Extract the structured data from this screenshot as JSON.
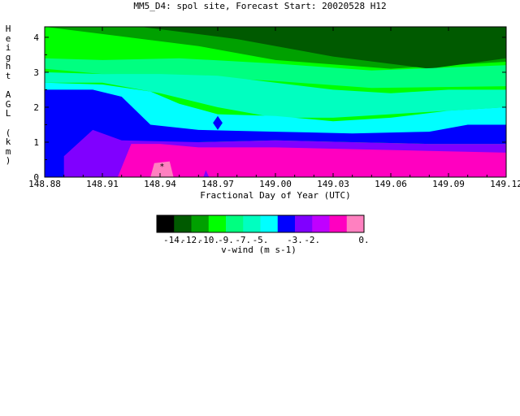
{
  "chart_data": {
    "type": "heatmap",
    "title": "MM5_D4: spol site,  Forecast Start: 20020528 H12",
    "xlabel": "Fractional Day of Year (UTC)",
    "ylabel": "Height AGL (km)",
    "xlim": [
      148.88,
      149.12
    ],
    "ylim": [
      0,
      4.3
    ],
    "x_ticks": [
      "148.88",
      "148.91",
      "148.94",
      "148.97",
      "149.00",
      "149.03",
      "149.06",
      "149.09",
      "149.12"
    ],
    "y_ticks": [
      "0",
      "1",
      "2",
      "3",
      "4"
    ],
    "colorbar": {
      "label": "v-wind (m s-1)",
      "tick_labels": [
        "-14.",
        "-12.",
        "-10.",
        "-9.",
        "-7.",
        "-5.",
        "-3.",
        "-2.",
        "0."
      ],
      "colors": [
        "#000000",
        "#005a00",
        "#00a000",
        "#00ff00",
        "#00ff80",
        "#00ffc0",
        "#00ffff",
        "#0000ff",
        "#8000ff",
        "#c000ff",
        "#ff00c0",
        "#ff80c0"
      ]
    },
    "layers": [
      {
        "color": "#00ff00",
        "x": [
          148.88,
          149.12
        ],
        "y": [
          0,
          4.3
        ]
      },
      {
        "color": "#00a000",
        "x": [
          148.88,
          148.96,
          149.0,
          149.06,
          149.12
        ],
        "top": [
          4.3,
          4.3,
          4.3,
          4.3,
          4.3
        ],
        "bottom": [
          4.3,
          3.75,
          3.35,
          3.1,
          3.3
        ]
      },
      {
        "color": "#005a00",
        "x": [
          148.88,
          148.93,
          148.98,
          149.03,
          149.08,
          149.12
        ],
        "top": [
          4.3,
          4.3,
          4.3,
          4.3,
          4.3,
          4.3
        ],
        "bottom": [
          4.3,
          4.3,
          3.95,
          3.45,
          3.1,
          3.4
        ]
      },
      {
        "color": "#000000",
        "x": [
          148.9,
          148.91,
          148.92
        ],
        "top": [
          4.3,
          4.3,
          4.3
        ],
        "bottom": [
          4.3,
          4.3,
          4.3
        ]
      },
      {
        "color": "#00ff80",
        "x": [
          148.88,
          148.91,
          148.95,
          149.0,
          149.05,
          149.12
        ],
        "top": [
          3.4,
          3.35,
          3.4,
          3.25,
          3.05,
          3.2
        ],
        "bottom": [
          3.1,
          2.95,
          2.9,
          2.75,
          2.55,
          2.6
        ]
      },
      {
        "color": "#00ffc0",
        "x": [
          148.88,
          148.91,
          148.94,
          148.97,
          149.0,
          149.03,
          149.06,
          149.09,
          149.12
        ],
        "top": [
          3.0,
          2.95,
          2.95,
          2.9,
          2.7,
          2.5,
          2.4,
          2.5,
          2.5
        ],
        "bottom": [
          2.7,
          2.7,
          2.4,
          2.0,
          1.7,
          1.7,
          1.8,
          1.9,
          2.0
        ]
      },
      {
        "color": "#00ffff",
        "x": [
          148.88,
          148.91,
          148.935,
          148.95,
          148.97,
          149.0,
          149.03,
          149.06,
          149.09,
          149.12
        ],
        "top": [
          2.7,
          2.65,
          2.45,
          2.1,
          1.8,
          1.75,
          1.6,
          1.7,
          1.9,
          2.0
        ],
        "bottom": [
          2.4,
          2.3,
          1.5,
          1.3,
          1.3,
          1.25,
          1.05,
          1.05,
          1.15,
          1.3
        ]
      },
      {
        "color": "#0000ff",
        "x": [
          148.88,
          148.905,
          148.92,
          148.935,
          148.96,
          149.0,
          149.04,
          149.08,
          149.1,
          149.12
        ],
        "top": [
          2.5,
          2.5,
          2.3,
          1.5,
          1.35,
          1.3,
          1.25,
          1.3,
          1.5,
          1.5
        ],
        "bottom": [
          0.0,
          0.0,
          0.9,
          0.95,
          1.0,
          1.05,
          1.0,
          0.95,
          0.95,
          0.95
        ]
      },
      {
        "color": "#8000ff",
        "x": [
          148.89,
          148.905,
          148.92,
          148.96,
          149.0,
          149.04,
          149.08,
          149.12
        ],
        "top": [
          0.6,
          1.35,
          1.05,
          1.0,
          1.05,
          1.0,
          0.95,
          0.95
        ],
        "bottom": [
          0.0,
          0.0,
          0.0,
          0.0,
          0.0,
          0.0,
          0.0,
          0.0
        ]
      },
      {
        "color": "#ff00c0",
        "x": [
          148.918,
          148.925,
          148.94,
          148.96,
          149.0,
          149.04,
          149.08,
          149.12
        ],
        "top": [
          0.0,
          0.95,
          0.95,
          0.85,
          0.85,
          0.8,
          0.75,
          0.7
        ],
        "bottom": [
          0.0,
          0.0,
          0.0,
          0.0,
          0.0,
          0.0,
          0.0,
          0.0
        ]
      }
    ],
    "patches": [
      {
        "color": "#0000ff",
        "points": [
          [
            148.9675,
            1.55
          ],
          [
            148.97,
            1.75
          ],
          [
            148.9725,
            1.55
          ],
          [
            148.97,
            1.35
          ]
        ]
      },
      {
        "color": "#8000ff",
        "points": [
          [
            148.9625,
            0.0
          ],
          [
            148.9638,
            0.2
          ],
          [
            148.9655,
            0.0
          ]
        ]
      },
      {
        "color": "#ff80c0",
        "points": [
          [
            148.935,
            0.0
          ],
          [
            148.937,
            0.4
          ],
          [
            148.945,
            0.45
          ],
          [
            148.947,
            0.0
          ]
        ]
      }
    ],
    "markers": [
      {
        "x": 148.941,
        "y": 0.3,
        "symbol": "*"
      }
    ]
  }
}
